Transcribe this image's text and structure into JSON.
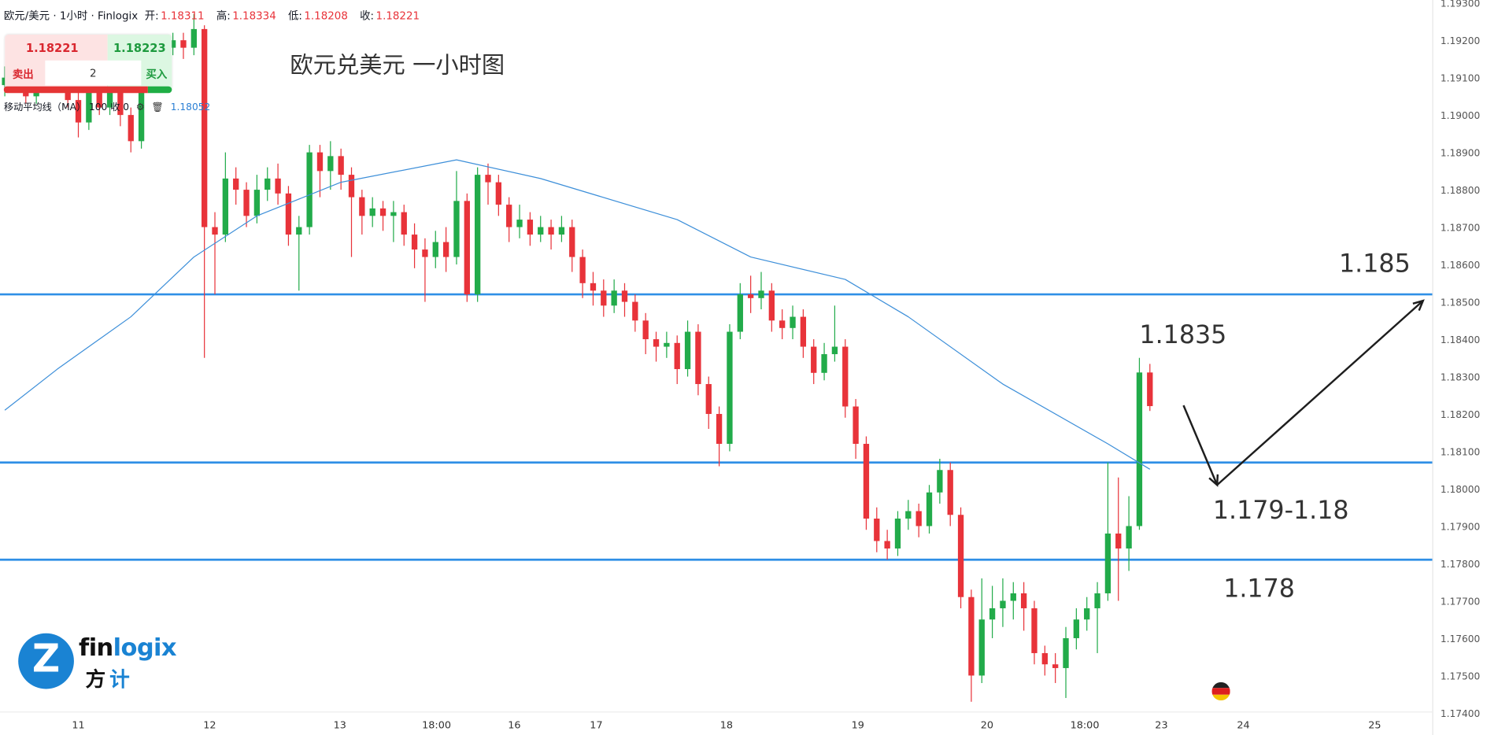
{
  "header": {
    "symbol": "欧元/美元 · 1小时 · Finlogix",
    "open_label": "开:",
    "open": "1.18311",
    "high_label": "高:",
    "high": "1.18334",
    "low_label": "低:",
    "low": "1.18208",
    "close_label": "收:",
    "close": "1.18221"
  },
  "trade_widget": {
    "sell_price": "1.18221",
    "buy_price": "1.18223",
    "sell_label": "卖出",
    "buy_label": "买入",
    "quantity": "2"
  },
  "indicator": {
    "name": "移动平均线（MA）",
    "params": "100 收 0",
    "value": "1.18052",
    "settings_icon": "gear-icon",
    "delete_icon": "trash-icon"
  },
  "title": "欧元兑美元 一小时图",
  "logo": {
    "text_dark": "fin",
    "text_blue": "logix",
    "cn_dark": "方",
    "cn_blue": "计"
  },
  "colors": {
    "up": "#22ab4a",
    "down": "#e8333a",
    "level_line": "#2f8fe6",
    "ma": "#3d8fd9",
    "arrow": "#1e1e1e",
    "brand": "#1a83d3"
  },
  "chart_data": {
    "type": "candlestick",
    "timeframe": "1小时",
    "ylim": [
      1.174,
      1.193
    ],
    "y_ticks": [
      "1.19300",
      "1.19200",
      "1.19100",
      "1.19000",
      "1.18900",
      "1.18800",
      "1.18700",
      "1.18600",
      "1.18500",
      "1.18400",
      "1.18300",
      "1.18200",
      "1.18100",
      "1.18000",
      "1.17900",
      "1.17800",
      "1.17700",
      "1.17600",
      "1.17500",
      "1.17400"
    ],
    "x_ticks": [
      {
        "label": "11",
        "index": 7
      },
      {
        "label": "12",
        "index": 19.5
      },
      {
        "label": "13",
        "index": 31.9
      },
      {
        "label": "18:00",
        "index": 41.1
      },
      {
        "label": "16",
        "index": 48.5
      },
      {
        "label": "17",
        "index": 56.3
      },
      {
        "label": "18",
        "index": 68.7
      },
      {
        "label": "19",
        "index": 81.2
      },
      {
        "label": "20",
        "index": 93.5
      },
      {
        "label": "18:00",
        "index": 102.8
      },
      {
        "label": "23",
        "index": 110.1
      },
      {
        "label": "24",
        "index": 117.9
      },
      {
        "label": "25",
        "index": 130.4
      }
    ],
    "candles_ohlc": [
      [
        1.1908,
        1.1913,
        1.1905,
        1.191
      ],
      [
        1.191,
        1.1915,
        1.1908,
        1.1913
      ],
      [
        1.1913,
        1.1915,
        1.1903,
        1.1905
      ],
      [
        1.1905,
        1.1914,
        1.1903,
        1.1912
      ],
      [
        1.1912,
        1.1914,
        1.1906,
        1.1908
      ],
      [
        1.1908,
        1.1917,
        1.1906,
        1.1915
      ],
      [
        1.1915,
        1.1917,
        1.1902,
        1.1904
      ],
      [
        1.1904,
        1.1906,
        1.1894,
        1.1898
      ],
      [
        1.1898,
        1.1909,
        1.1896,
        1.1907
      ],
      [
        1.1907,
        1.1909,
        1.19,
        1.1902
      ],
      [
        1.1902,
        1.1911,
        1.19,
        1.1909
      ],
      [
        1.1909,
        1.1911,
        1.1897,
        1.19
      ],
      [
        1.19,
        1.1902,
        1.189,
        1.1893
      ],
      [
        1.1893,
        1.191,
        1.1891,
        1.1908
      ],
      [
        1.1908,
        1.1915,
        1.1906,
        1.1913
      ],
      [
        1.1913,
        1.1921,
        1.1911,
        1.1918
      ],
      [
        1.1918,
        1.1922,
        1.1916,
        1.192
      ],
      [
        1.192,
        1.1922,
        1.1915,
        1.1918
      ],
      [
        1.1918,
        1.1927,
        1.1916,
        1.1923
      ],
      [
        1.1923,
        1.1924,
        1.1835,
        1.187
      ],
      [
        1.187,
        1.1874,
        1.1852,
        1.1868
      ],
      [
        1.1868,
        1.189,
        1.1866,
        1.1883
      ],
      [
        1.1883,
        1.1886,
        1.1876,
        1.188
      ],
      [
        1.188,
        1.1882,
        1.187,
        1.1873
      ],
      [
        1.1873,
        1.1884,
        1.1871,
        1.188
      ],
      [
        1.188,
        1.1886,
        1.1877,
        1.1883
      ],
      [
        1.1883,
        1.1887,
        1.1876,
        1.1879
      ],
      [
        1.1879,
        1.1881,
        1.1865,
        1.1868
      ],
      [
        1.1868,
        1.1873,
        1.1853,
        1.187
      ],
      [
        1.187,
        1.1892,
        1.1868,
        1.189
      ],
      [
        1.189,
        1.1892,
        1.1878,
        1.1885
      ],
      [
        1.1885,
        1.1893,
        1.188,
        1.1889
      ],
      [
        1.1889,
        1.1891,
        1.188,
        1.1884
      ],
      [
        1.1884,
        1.1886,
        1.1862,
        1.1878
      ],
      [
        1.1878,
        1.188,
        1.1868,
        1.1873
      ],
      [
        1.1873,
        1.1878,
        1.187,
        1.1875
      ],
      [
        1.1875,
        1.1877,
        1.1869,
        1.1873
      ],
      [
        1.1873,
        1.1877,
        1.1866,
        1.1874
      ],
      [
        1.1874,
        1.1876,
        1.1865,
        1.1868
      ],
      [
        1.1868,
        1.1871,
        1.1859,
        1.1864
      ],
      [
        1.1864,
        1.1867,
        1.185,
        1.1862
      ],
      [
        1.1862,
        1.1869,
        1.1859,
        1.1866
      ],
      [
        1.1866,
        1.187,
        1.1858,
        1.1862
      ],
      [
        1.1862,
        1.1885,
        1.186,
        1.1877
      ],
      [
        1.1877,
        1.1879,
        1.185,
        1.1852
      ],
      [
        1.1852,
        1.1886,
        1.185,
        1.1884
      ],
      [
        1.1884,
        1.1887,
        1.1876,
        1.1882
      ],
      [
        1.1882,
        1.1884,
        1.1873,
        1.1876
      ],
      [
        1.1876,
        1.1878,
        1.1866,
        1.187
      ],
      [
        1.187,
        1.1876,
        1.1867,
        1.1872
      ],
      [
        1.1872,
        1.1874,
        1.1865,
        1.1868
      ],
      [
        1.1868,
        1.1873,
        1.1866,
        1.187
      ],
      [
        1.187,
        1.1872,
        1.1864,
        1.1868
      ],
      [
        1.1868,
        1.1873,
        1.1866,
        1.187
      ],
      [
        1.187,
        1.1872,
        1.1858,
        1.1862
      ],
      [
        1.1862,
        1.1864,
        1.1851,
        1.1855
      ],
      [
        1.1855,
        1.1858,
        1.1849,
        1.1853
      ],
      [
        1.1853,
        1.1856,
        1.1846,
        1.1849
      ],
      [
        1.1849,
        1.1856,
        1.1847,
        1.1853
      ],
      [
        1.1853,
        1.1855,
        1.1846,
        1.185
      ],
      [
        1.185,
        1.1852,
        1.1842,
        1.1845
      ],
      [
        1.1845,
        1.1847,
        1.1836,
        1.184
      ],
      [
        1.184,
        1.1842,
        1.1834,
        1.1838
      ],
      [
        1.1838,
        1.1842,
        1.1835,
        1.1839
      ],
      [
        1.1839,
        1.1841,
        1.1828,
        1.1832
      ],
      [
        1.1832,
        1.1845,
        1.183,
        1.1842
      ],
      [
        1.1842,
        1.1844,
        1.1825,
        1.1828
      ],
      [
        1.1828,
        1.183,
        1.1816,
        1.182
      ],
      [
        1.182,
        1.1822,
        1.1806,
        1.1812
      ],
      [
        1.1812,
        1.1844,
        1.181,
        1.1842
      ],
      [
        1.1842,
        1.1855,
        1.184,
        1.1852
      ],
      [
        1.1852,
        1.1857,
        1.1847,
        1.1851
      ],
      [
        1.1851,
        1.1858,
        1.1848,
        1.1853
      ],
      [
        1.1853,
        1.1855,
        1.1842,
        1.1845
      ],
      [
        1.1845,
        1.1848,
        1.184,
        1.1843
      ],
      [
        1.1843,
        1.1849,
        1.184,
        1.1846
      ],
      [
        1.1846,
        1.1848,
        1.1835,
        1.1838
      ],
      [
        1.1838,
        1.184,
        1.1828,
        1.1831
      ],
      [
        1.1831,
        1.1839,
        1.1829,
        1.1836
      ],
      [
        1.1836,
        1.1849,
        1.1834,
        1.1838
      ],
      [
        1.1838,
        1.184,
        1.1819,
        1.1822
      ],
      [
        1.1822,
        1.1824,
        1.1808,
        1.1812
      ],
      [
        1.1812,
        1.1814,
        1.1789,
        1.1792
      ],
      [
        1.1792,
        1.1795,
        1.1783,
        1.1786
      ],
      [
        1.1786,
        1.1789,
        1.1781,
        1.1784
      ],
      [
        1.1784,
        1.1794,
        1.1782,
        1.1792
      ],
      [
        1.1792,
        1.1797,
        1.1789,
        1.1794
      ],
      [
        1.1794,
        1.1796,
        1.1787,
        1.179
      ],
      [
        1.179,
        1.1801,
        1.1788,
        1.1799
      ],
      [
        1.1799,
        1.1808,
        1.1796,
        1.1805
      ],
      [
        1.1805,
        1.1807,
        1.179,
        1.1793
      ],
      [
        1.1793,
        1.1795,
        1.1768,
        1.1771
      ],
      [
        1.1771,
        1.1773,
        1.1743,
        1.175
      ],
      [
        1.175,
        1.1776,
        1.1748,
        1.1765
      ],
      [
        1.1765,
        1.1774,
        1.176,
        1.1768
      ],
      [
        1.1768,
        1.1776,
        1.1763,
        1.177
      ],
      [
        1.177,
        1.1775,
        1.1765,
        1.1772
      ],
      [
        1.1772,
        1.1775,
        1.1762,
        1.1768
      ],
      [
        1.1768,
        1.177,
        1.1753,
        1.1756
      ],
      [
        1.1756,
        1.1758,
        1.175,
        1.1753
      ],
      [
        1.1753,
        1.1756,
        1.1748,
        1.1752
      ],
      [
        1.1752,
        1.1763,
        1.1744,
        1.176
      ],
      [
        1.176,
        1.1768,
        1.1757,
        1.1765
      ],
      [
        1.1765,
        1.1771,
        1.1762,
        1.1768
      ],
      [
        1.1768,
        1.1775,
        1.1756,
        1.1772
      ],
      [
        1.1772,
        1.1807,
        1.177,
        1.1788
      ],
      [
        1.1788,
        1.1803,
        1.177,
        1.1784
      ],
      [
        1.1784,
        1.1798,
        1.1778,
        1.179
      ],
      [
        1.179,
        1.1835,
        1.1789,
        1.18311
      ],
      [
        1.18311,
        1.18334,
        1.18208,
        1.18221
      ]
    ],
    "moving_average": {
      "name": "移动平均线（MA）",
      "period": 100,
      "points": [
        [
          0,
          1.1821
        ],
        [
          5,
          1.1832
        ],
        [
          12,
          1.1846
        ],
        [
          18,
          1.1862
        ],
        [
          24,
          1.1873
        ],
        [
          32,
          1.1882
        ],
        [
          43,
          1.1888
        ],
        [
          51,
          1.1883
        ],
        [
          64,
          1.1872
        ],
        [
          71,
          1.1862
        ],
        [
          80,
          1.1856
        ],
        [
          86,
          1.1846
        ],
        [
          95,
          1.1828
        ],
        [
          105,
          1.1812
        ],
        [
          109,
          1.18052
        ]
      ]
    },
    "horizontal_levels": [
      1.1852,
      1.1807,
      1.1781
    ],
    "annotations": [
      {
        "text": "1.185",
        "index": 127,
        "price": 1.1858
      },
      {
        "text": "1.1835",
        "index": 108,
        "price": 1.1839
      },
      {
        "text": "1.179-1.18",
        "index": 115,
        "price": 1.1792
      },
      {
        "text": "1.178",
        "index": 116,
        "price": 1.1771
      }
    ],
    "arrow_path": [
      [
        112.2,
        1.18223
      ],
      [
        115.4,
        1.1801
      ],
      [
        135.0,
        1.18503
      ]
    ],
    "event_marker": {
      "flag": "germany",
      "index": 115.5
    }
  }
}
